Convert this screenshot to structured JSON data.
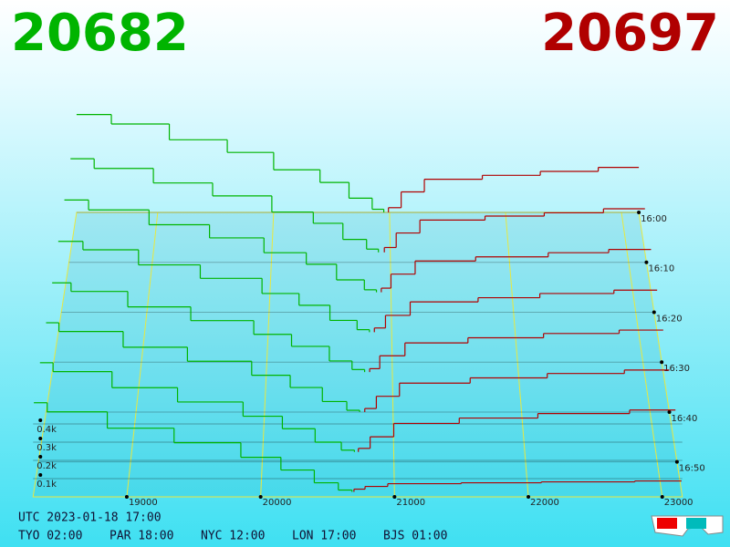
{
  "chart_data": {
    "type": "depth3d",
    "bid_price": 20682,
    "ask_price": 20697,
    "bid_color": "#00b400",
    "ask_color": "#b00000",
    "timestamp": "UTC 2023-01-18 17:00",
    "clocks": [
      "TYO 02:00",
      "PAR 18:00",
      "NYC 12:00",
      "LON 17:00",
      "BJS 01:00"
    ],
    "xlim": [
      18300,
      23150
    ],
    "xticks": [
      19000,
      20000,
      21000,
      22000,
      23000
    ],
    "zlim": [
      960,
      1017
    ],
    "zticks": [
      {
        "value": 960,
        "label": "16:00"
      },
      {
        "value": 970,
        "label": "16:10"
      },
      {
        "value": 980,
        "label": "16:20"
      },
      {
        "value": 990,
        "label": "16:30"
      },
      {
        "value": 1000,
        "label": "16:40"
      },
      {
        "value": 1010,
        "label": "16:50"
      }
    ],
    "vticks": [
      {
        "value": 100,
        "label": "0.1k"
      },
      {
        "value": 200,
        "label": "0.2k"
      },
      {
        "value": 300,
        "label": "0.3k"
      },
      {
        "value": 400,
        "label": "0.4k"
      }
    ],
    "slices": [
      {
        "time": 960,
        "bid_prices": [
          20950,
          20850,
          20650,
          20400,
          20000,
          19600,
          19100,
          18600
        ],
        "bid_volumes": [
          20,
          90,
          190,
          270,
          380,
          460,
          560,
          620
        ],
        "ask_prices": [
          20990,
          21100,
          21300,
          21800,
          22300,
          22800
        ],
        "ask_volumes": [
          30,
          130,
          210,
          235,
          260,
          285
        ]
      },
      {
        "time": 968,
        "bid_prices": [
          20900,
          20800,
          20600,
          20350,
          20000,
          19500,
          19000,
          18500
        ],
        "bid_volumes": [
          20,
          80,
          180,
          250,
          350,
          430,
          520,
          580
        ],
        "ask_prices": [
          20950,
          21050,
          21250,
          21800,
          22300,
          22800
        ],
        "ask_volumes": [
          30,
          120,
          200,
          225,
          245,
          270
        ]
      },
      {
        "time": 976,
        "bid_prices": [
          20880,
          20780,
          20550,
          20300,
          19950,
          19500,
          19000,
          18500
        ],
        "bid_volumes": [
          15,
          75,
          170,
          240,
          330,
          410,
          500,
          560
        ],
        "ask_prices": [
          20920,
          21000,
          21200,
          21700,
          22300,
          22800
        ],
        "ask_volumes": [
          25,
          110,
          190,
          215,
          240,
          260
        ]
      },
      {
        "time": 984,
        "bid_prices": [
          20820,
          20720,
          20500,
          20250,
          19950,
          19450,
          18950,
          18500
        ],
        "bid_volumes": [
          15,
          70,
          160,
          230,
          320,
          400,
          490,
          540
        ],
        "ask_prices": [
          20860,
          20950,
          21150,
          21700,
          22200,
          22800
        ],
        "ask_volumes": [
          25,
          100,
          180,
          205,
          230,
          250
        ]
      },
      {
        "time": 992,
        "bid_prices": [
          20780,
          20680,
          20500,
          20200,
          19900,
          19400,
          18900,
          18450
        ],
        "bid_volumes": [
          15,
          65,
          150,
          220,
          300,
          380,
          470,
          520
        ],
        "ask_prices": [
          20820,
          20900,
          21100,
          21600,
          22200,
          22800
        ],
        "ask_volumes": [
          20,
          95,
          170,
          200,
          225,
          245
        ]
      },
      {
        "time": 1000,
        "bid_prices": [
          20740,
          20640,
          20450,
          20200,
          19900,
          19400,
          18900,
          18400
        ],
        "bid_volumes": [
          10,
          60,
          140,
          210,
          290,
          370,
          460,
          510
        ],
        "ask_prices": [
          20780,
          20870,
          21050,
          21600,
          22200,
          22800
        ],
        "ask_volumes": [
          20,
          90,
          165,
          195,
          220,
          240
        ]
      },
      {
        "time": 1008,
        "bid_prices": [
          20700,
          20600,
          20400,
          20150,
          19850,
          19350,
          18850,
          18400
        ],
        "bid_volumes": [
          10,
          55,
          130,
          200,
          280,
          360,
          450,
          500
        ],
        "ask_prices": [
          20730,
          20820,
          21000,
          21500,
          22100,
          22800
        ],
        "ask_volumes": [
          20,
          85,
          160,
          190,
          215,
          235
        ]
      },
      {
        "time": 1016,
        "bid_prices": [
          20682,
          20580,
          20400,
          20150,
          19850,
          19350,
          18850,
          18400
        ],
        "bid_volumes": [
          10,
          50,
          120,
          190,
          270,
          350,
          440,
          490
        ],
        "ask_prices": [
          20697,
          20780,
          20950,
          21500,
          22100,
          22800
        ],
        "ask_volumes": [
          15,
          30,
          45,
          50,
          55,
          60
        ]
      }
    ]
  }
}
